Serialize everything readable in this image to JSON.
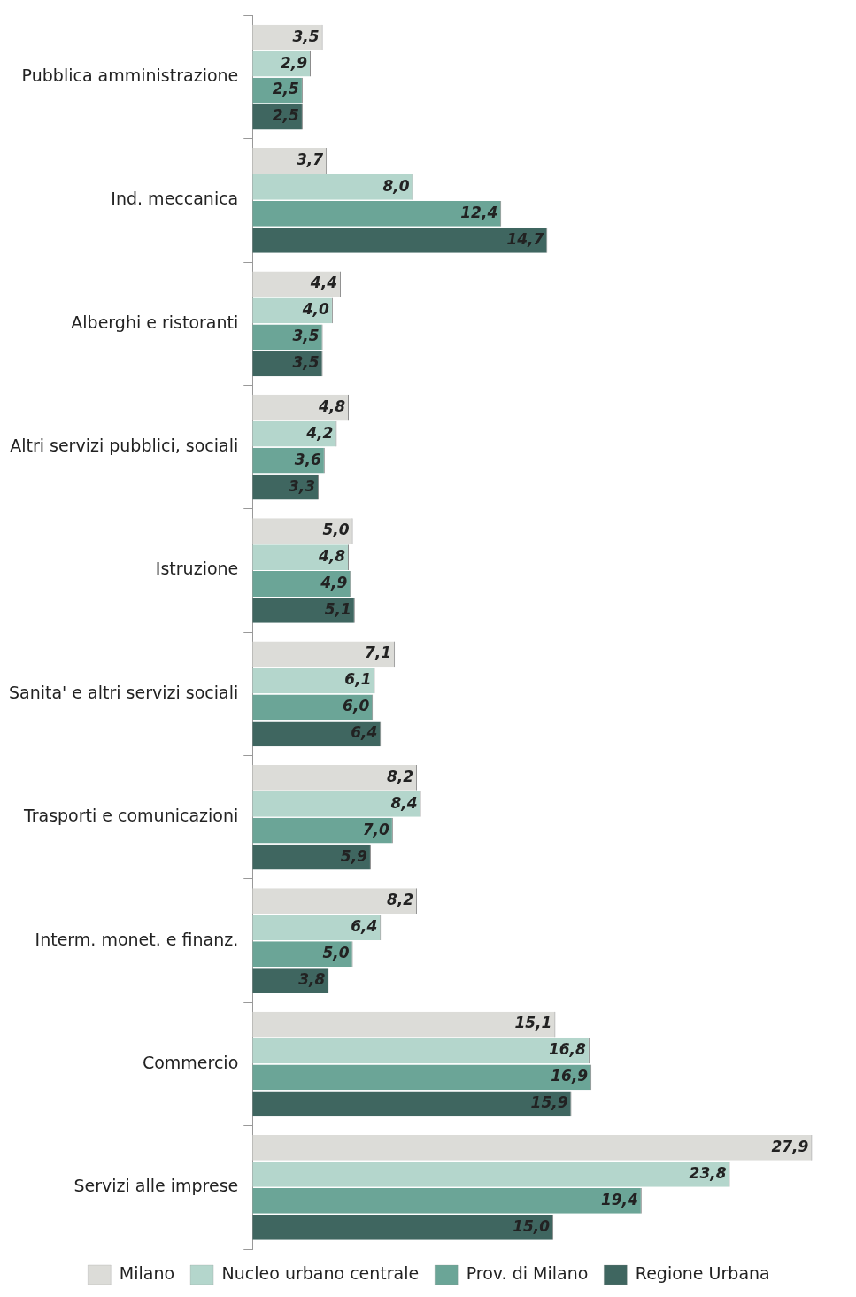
{
  "chart_data": {
    "type": "bar",
    "orientation": "horizontal",
    "legend": "bottom",
    "categories": [
      "Pubblica amministrazione",
      "Ind. meccanica",
      "Alberghi e ristoranti",
      "Altri servizi pubblici, sociali",
      "Istruzione",
      "Sanita' e altri servizi sociali",
      "Trasporti e comunicazioni",
      "Interm. monet. e finanz.",
      "Commercio",
      "Servizi alle imprese"
    ],
    "series": [
      {
        "name": "Milano",
        "color": "#dcdcd8",
        "values": [
          3.5,
          3.7,
          4.4,
          4.8,
          5.0,
          7.1,
          8.2,
          8.2,
          15.1,
          27.9
        ],
        "value_labels": [
          "3,5",
          "3,7",
          "4,4",
          "4,8",
          "5,0",
          "7,1",
          "8,2",
          "8,2",
          "15,1",
          "27,9"
        ]
      },
      {
        "name": "Nucleo urbano centrale",
        "color": "#b4d6cc",
        "values": [
          2.9,
          8.0,
          4.0,
          4.2,
          4.8,
          6.1,
          8.4,
          6.4,
          16.8,
          23.8
        ],
        "value_labels": [
          "2,9",
          "8,0",
          "4,0",
          "4,2",
          "4,8",
          "6,1",
          "8,4",
          "6,4",
          "16,8",
          "23,8"
        ]
      },
      {
        "name": "Prov. di Milano",
        "color": "#6ba597",
        "values": [
          2.5,
          12.4,
          3.5,
          3.6,
          4.9,
          6.0,
          7.0,
          5.0,
          16.9,
          19.4
        ],
        "value_labels": [
          "2,5",
          "12,4",
          "3,5",
          "3,6",
          "4,9",
          "6,0",
          "7,0",
          "5,0",
          "16,9",
          "19,4"
        ]
      },
      {
        "name": "Regione Urbana",
        "color": "#3f6660",
        "values": [
          2.5,
          14.7,
          3.5,
          3.3,
          5.1,
          6.4,
          5.9,
          3.8,
          15.9,
          15.0
        ],
        "value_labels": [
          "2,5",
          "14,7",
          "3,5",
          "3,3",
          "5,1",
          "6,4",
          "5,9",
          "3,8",
          "15,9",
          "15,0"
        ]
      }
    ]
  }
}
